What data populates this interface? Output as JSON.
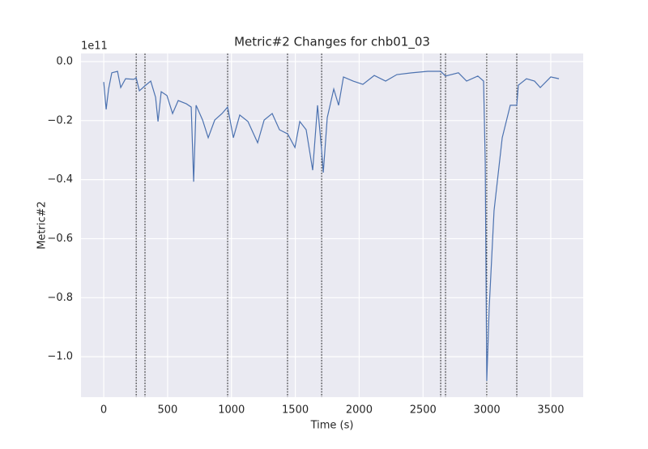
{
  "chart_data": {
    "type": "line",
    "title": "Metric#2 Changes for chb01_03",
    "x_label": "Time (s)",
    "y_label": "Metric#2",
    "y_offset_label": "1e11",
    "series": [
      {
        "color": "#4c72b0",
        "x": [
          0,
          19,
          38,
          63,
          108,
          133,
          171,
          235,
          254,
          279,
          323,
          368,
          406,
          425,
          450,
          495,
          539,
          583,
          647,
          685,
          704,
          723,
          774,
          818,
          869,
          926,
          970,
          1015,
          1065,
          1129,
          1205,
          1256,
          1319,
          1376,
          1440,
          1497,
          1535,
          1585,
          1636,
          1674,
          1706,
          1719,
          1750,
          1801,
          1839,
          1877,
          1953,
          2029,
          2118,
          2207,
          2295,
          2410,
          2537,
          2638,
          2676,
          2777,
          2841,
          2929,
          2974,
          2987,
          2999,
          3018,
          3056,
          3120,
          3183,
          3234,
          3246,
          3310,
          3373,
          3418,
          3500,
          3564
        ],
        "values": [
          -0.069,
          -0.162,
          -0.093,
          -0.038,
          -0.033,
          -0.088,
          -0.058,
          -0.06,
          -0.055,
          -0.099,
          -0.082,
          -0.066,
          -0.121,
          -0.203,
          -0.102,
          -0.115,
          -0.176,
          -0.132,
          -0.143,
          -0.154,
          -0.407,
          -0.148,
          -0.198,
          -0.258,
          -0.198,
          -0.176,
          -0.154,
          -0.258,
          -0.181,
          -0.203,
          -0.275,
          -0.198,
          -0.176,
          -0.231,
          -0.245,
          -0.291,
          -0.203,
          -0.231,
          -0.368,
          -0.148,
          -0.3,
          -0.376,
          -0.19,
          -0.093,
          -0.148,
          -0.052,
          -0.066,
          -0.077,
          -0.047,
          -0.066,
          -0.044,
          -0.038,
          -0.033,
          -0.033,
          -0.049,
          -0.038,
          -0.066,
          -0.049,
          -0.066,
          -0.341,
          -1.082,
          -0.835,
          -0.505,
          -0.258,
          -0.148,
          -0.148,
          -0.08,
          -0.058,
          -0.066,
          -0.088,
          -0.052,
          -0.058
        ]
      }
    ],
    "vlines": [
      254,
      323,
      970,
      1439,
      1706,
      2638,
      2676,
      2999,
      3234
    ],
    "xlim": [
      -178,
      3754
    ],
    "ylim": [
      -1.137,
      0.0275
    ],
    "xticks": [
      0,
      500,
      1000,
      1500,
      2000,
      2500,
      3000,
      3500
    ],
    "yticks": [
      {
        "value": 0,
        "label": "0.0"
      },
      {
        "value": -0.2,
        "label": "−0.2"
      },
      {
        "value": -0.4,
        "label": "−0.4"
      },
      {
        "value": -0.6,
        "label": "−0.6"
      },
      {
        "value": -0.8,
        "label": "−0.8"
      },
      {
        "value": -1.0,
        "label": "−1.0"
      }
    ],
    "grid": true
  }
}
